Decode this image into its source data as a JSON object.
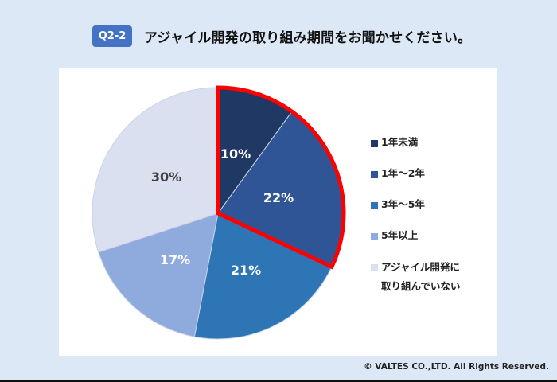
{
  "header": {
    "badge": "Q2-2",
    "title": "アジャイル開発の取り組み期間をお聞かせください。"
  },
  "chart_data": {
    "type": "pie",
    "title": "アジャイル開発の取り組み期間をお聞かせください。",
    "categories": [
      "1年未満",
      "1年～2年",
      "3年～5年",
      "5年以上",
      "アジャイル開発に取り組んでいない"
    ],
    "values": [
      10,
      22,
      21,
      17,
      30
    ],
    "unit": "%",
    "colors": [
      "#203864",
      "#2f5597",
      "#2e75b6",
      "#8faadc",
      "#dae0f0"
    ],
    "label_colors": [
      "#ffffff",
      "#ffffff",
      "#ffffff",
      "#ffffff",
      "#404040"
    ],
    "highlighted": [
      "1年未満",
      "1年～2年"
    ],
    "highlight_color": "#ff0000",
    "start_angle_deg": 0,
    "direction": "clockwise",
    "legend_position": "right"
  },
  "labels": {
    "s0": "10%",
    "s1": "22%",
    "s2": "21%",
    "s3": "17%",
    "s4": "30%"
  },
  "legend": [
    {
      "label": "1年未満",
      "color": "#203864"
    },
    {
      "label": "1年～2年",
      "color": "#2f5597"
    },
    {
      "label": "3年～5年",
      "color": "#2e75b6"
    },
    {
      "label": "5年以上",
      "color": "#8faadc"
    },
    {
      "label": "アジャイル開発に\n取り組んでいない",
      "color": "#dae0f0"
    }
  ],
  "footer": {
    "copyright": "© VALTES CO.,LTD. All Rights Reserved."
  }
}
